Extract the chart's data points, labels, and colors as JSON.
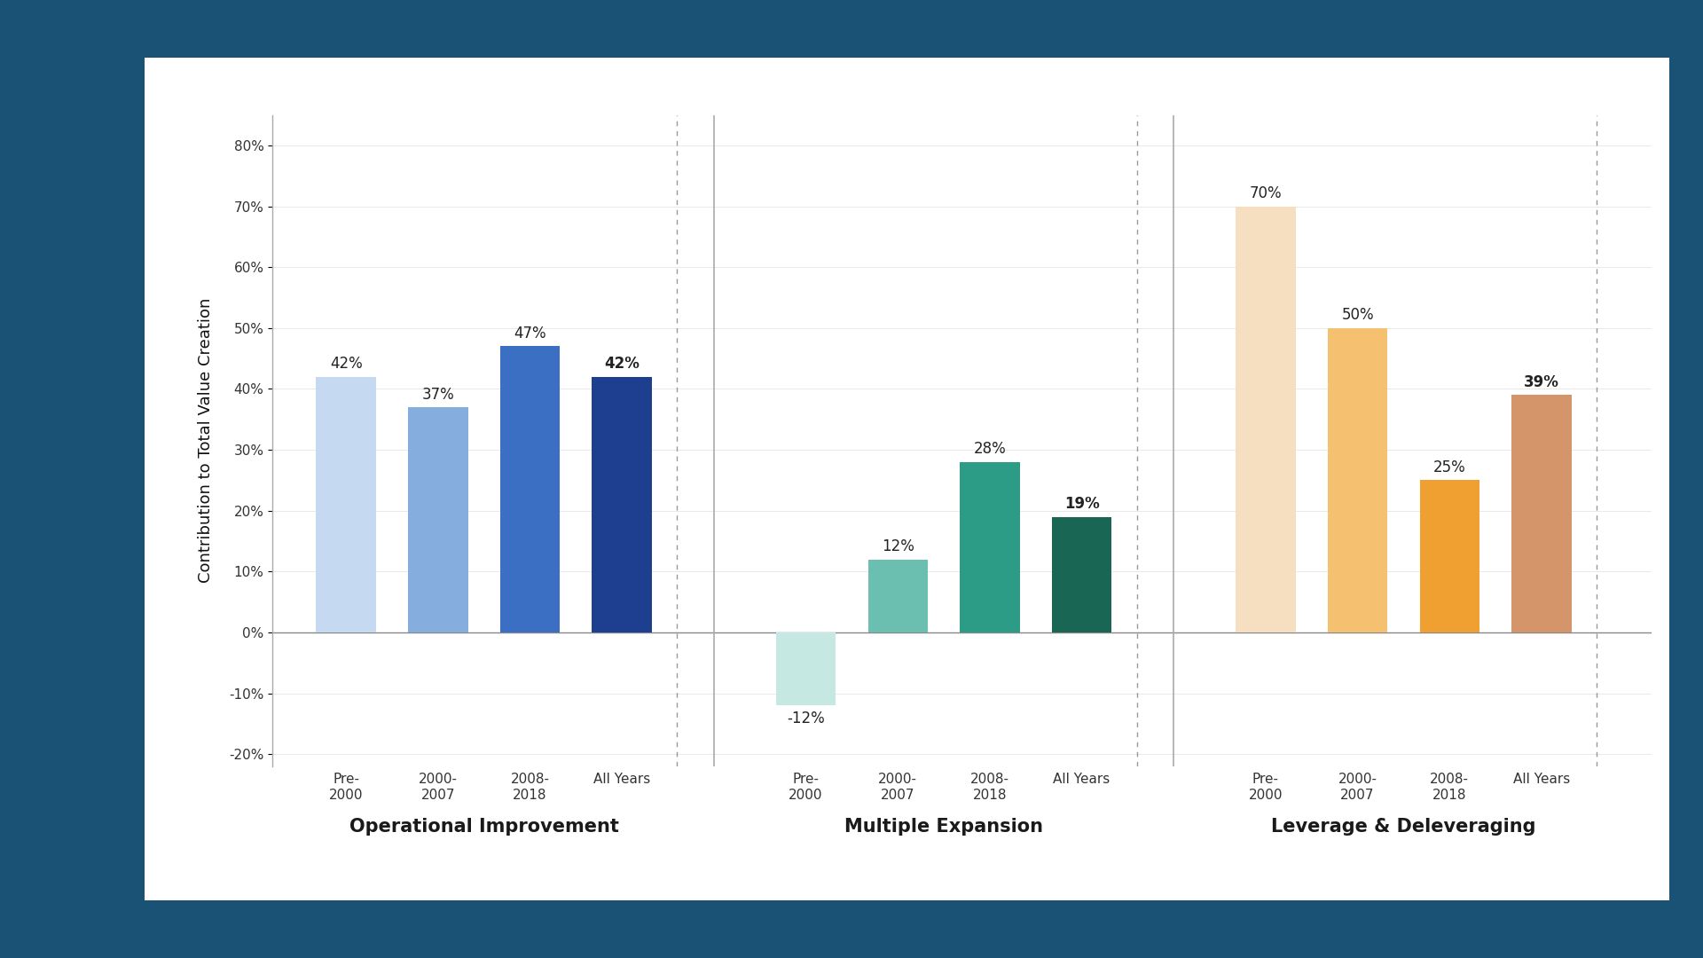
{
  "groups": [
    {
      "label": "Operational Improvement",
      "bars": [
        {
          "period": "Pre-\n2000",
          "value": 42,
          "color": "#c5d9f0"
        },
        {
          "period": "2000-\n2007",
          "value": 37,
          "color": "#85aede"
        },
        {
          "period": "2008-\n2018",
          "value": 47,
          "color": "#3a6fc4"
        },
        {
          "period": "All Years",
          "value": 42,
          "color": "#1e3f8f",
          "bold": true
        }
      ]
    },
    {
      "label": "Multiple Expansion",
      "bars": [
        {
          "period": "Pre-\n2000",
          "value": -12,
          "color": "#c5e8e2"
        },
        {
          "period": "2000-\n2007",
          "value": 12,
          "color": "#6bbfb0"
        },
        {
          "period": "2008-\n2018",
          "value": 28,
          "color": "#2d9c86"
        },
        {
          "period": "All Years",
          "value": 19,
          "color": "#1a6655",
          "bold": true
        }
      ]
    },
    {
      "label": "Leverage & Deleveraging",
      "bars": [
        {
          "period": "Pre-\n2000",
          "value": 70,
          "color": "#f5dfc0"
        },
        {
          "period": "2000-\n2007",
          "value": 50,
          "color": "#f5c070"
        },
        {
          "period": "2008-\n2018",
          "value": 25,
          "color": "#f0a030"
        },
        {
          "period": "All Years",
          "value": 39,
          "color": "#d4956a",
          "bold": true
        }
      ]
    }
  ],
  "ylabel": "Contribution to Total Value Creation",
  "ylim": [
    -22,
    85
  ],
  "yticks": [
    -20,
    -10,
    0,
    10,
    20,
    30,
    40,
    50,
    60,
    70,
    80
  ],
  "ytick_labels": [
    "-20%",
    "-10%",
    "0%",
    "10%",
    "20%",
    "30%",
    "40%",
    "50%",
    "60%",
    "70%",
    "80%"
  ],
  "outer_bg": "#1a5276",
  "panel_bg": "#ffffff",
  "bar_width": 0.65,
  "value_fontsize": 12,
  "ylabel_fontsize": 13,
  "period_fontsize": 11,
  "group_label_fontsize": 15
}
